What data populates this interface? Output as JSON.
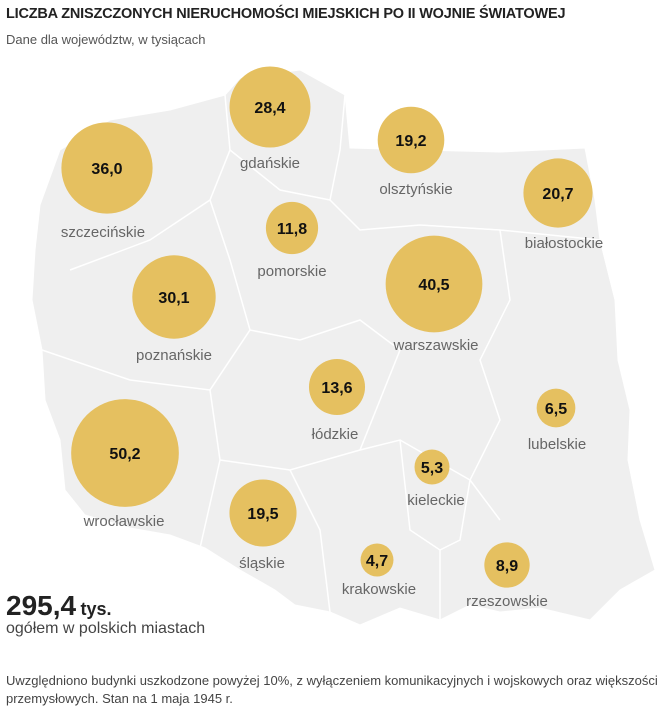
{
  "header": {
    "title": "LICZBA ZNISZCZONYCH NIERUCHOMOŚCI MIEJSKICH PO II WOJNIE ŚWIATOWEJ",
    "subtitle": "Dane dla województw, w tysiącach"
  },
  "summary": {
    "value": "295,4",
    "unit": "tys.",
    "description": "ogółem w polskich miastach"
  },
  "footnote": "Uwzględniono budynki uszkodzone powyżej 10%, z wyłączeniem komunikacyjnych i wojskowych oraz większości przemysłowych. Stan na 1 maja 1945 r.",
  "colors": {
    "bubble": "#e5c060",
    "land": "#efefef",
    "border": "#ffffff"
  },
  "chart_data": {
    "type": "bubble-map",
    "title": "LICZBA ZNISZCZONYCH NIERUCHOMOŚCI MIEJSKICH PO II WOJNIE ŚWIATOWEJ",
    "unit": "tys.",
    "regions": [
      {
        "name": "szczecińskie",
        "value": 36.0,
        "label": "36,0"
      },
      {
        "name": "gdańskie",
        "value": 28.4,
        "label": "28,4"
      },
      {
        "name": "olsztyńskie",
        "value": 19.2,
        "label": "19,2"
      },
      {
        "name": "białostockie",
        "value": 20.7,
        "label": "20,7"
      },
      {
        "name": "pomorskie",
        "value": 11.8,
        "label": "11,8"
      },
      {
        "name": "poznańskie",
        "value": 30.1,
        "label": "30,1"
      },
      {
        "name": "warszawskie",
        "value": 40.5,
        "label": "40,5"
      },
      {
        "name": "łódzkie",
        "value": 13.6,
        "label": "13,6"
      },
      {
        "name": "lubelskie",
        "value": 6.5,
        "label": "6,5"
      },
      {
        "name": "wrocławskie",
        "value": 50.2,
        "label": "50,2"
      },
      {
        "name": "kieleckie",
        "value": 5.3,
        "label": "5,3"
      },
      {
        "name": "śląskie",
        "value": 19.5,
        "label": "19,5"
      },
      {
        "name": "krakowskie",
        "value": 4.7,
        "label": "4,7"
      },
      {
        "name": "rzeszowskie",
        "value": 8.9,
        "label": "8,9"
      }
    ]
  }
}
